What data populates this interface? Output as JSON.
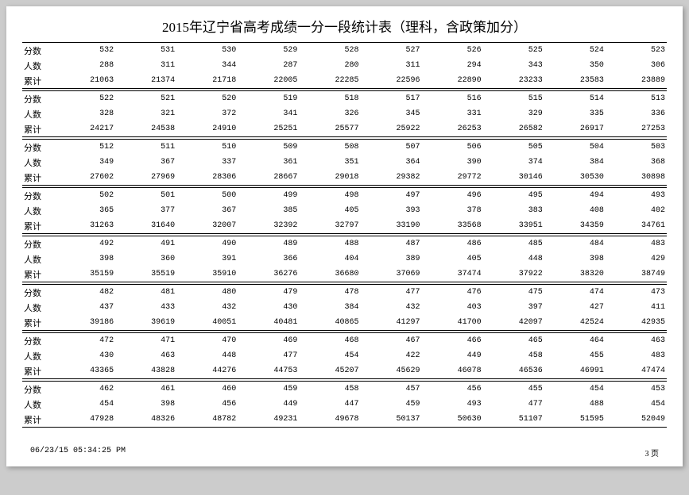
{
  "title": "2015年辽宁省高考成绩一分一段统计表（理科，含政策加分）",
  "row_labels": [
    "分数",
    "人数",
    "累计"
  ],
  "blocks": [
    {
      "score": [
        532,
        531,
        530,
        529,
        528,
        527,
        526,
        525,
        524,
        523
      ],
      "count": [
        288,
        311,
        344,
        287,
        280,
        311,
        294,
        343,
        350,
        306
      ],
      "cum": [
        21063,
        21374,
        21718,
        22005,
        22285,
        22596,
        22890,
        23233,
        23583,
        23889
      ]
    },
    {
      "score": [
        522,
        521,
        520,
        519,
        518,
        517,
        516,
        515,
        514,
        513
      ],
      "count": [
        328,
        321,
        372,
        341,
        326,
        345,
        331,
        329,
        335,
        336
      ],
      "cum": [
        24217,
        24538,
        24910,
        25251,
        25577,
        25922,
        26253,
        26582,
        26917,
        27253
      ]
    },
    {
      "score": [
        512,
        511,
        510,
        509,
        508,
        507,
        506,
        505,
        504,
        503
      ],
      "count": [
        349,
        367,
        337,
        361,
        351,
        364,
        390,
        374,
        384,
        368
      ],
      "cum": [
        27602,
        27969,
        28306,
        28667,
        29018,
        29382,
        29772,
        30146,
        30530,
        30898
      ]
    },
    {
      "score": [
        502,
        501,
        500,
        499,
        498,
        497,
        496,
        495,
        494,
        493
      ],
      "count": [
        365,
        377,
        367,
        385,
        405,
        393,
        378,
        383,
        408,
        402
      ],
      "cum": [
        31263,
        31640,
        32007,
        32392,
        32797,
        33190,
        33568,
        33951,
        34359,
        34761
      ]
    },
    {
      "score": [
        492,
        491,
        490,
        489,
        488,
        487,
        486,
        485,
        484,
        483
      ],
      "count": [
        398,
        360,
        391,
        366,
        404,
        389,
        405,
        448,
        398,
        429
      ],
      "cum": [
        35159,
        35519,
        35910,
        36276,
        36680,
        37069,
        37474,
        37922,
        38320,
        38749
      ]
    },
    {
      "score": [
        482,
        481,
        480,
        479,
        478,
        477,
        476,
        475,
        474,
        473
      ],
      "count": [
        437,
        433,
        432,
        430,
        384,
        432,
        403,
        397,
        427,
        411
      ],
      "cum": [
        39186,
        39619,
        40051,
        40481,
        40865,
        41297,
        41700,
        42097,
        42524,
        42935
      ]
    },
    {
      "score": [
        472,
        471,
        470,
        469,
        468,
        467,
        466,
        465,
        464,
        463
      ],
      "count": [
        430,
        463,
        448,
        477,
        454,
        422,
        449,
        458,
        455,
        483
      ],
      "cum": [
        43365,
        43828,
        44276,
        44753,
        45207,
        45629,
        46078,
        46536,
        46991,
        47474
      ]
    },
    {
      "score": [
        462,
        461,
        460,
        459,
        458,
        457,
        456,
        455,
        454,
        453
      ],
      "count": [
        454,
        398,
        456,
        449,
        447,
        459,
        493,
        477,
        488,
        454
      ],
      "cum": [
        47928,
        48326,
        48782,
        49231,
        49678,
        50137,
        50630,
        51107,
        51595,
        52049
      ]
    }
  ],
  "footer_timestamp": "06/23/15 05:34:25 PM",
  "footer_page": "3 页"
}
